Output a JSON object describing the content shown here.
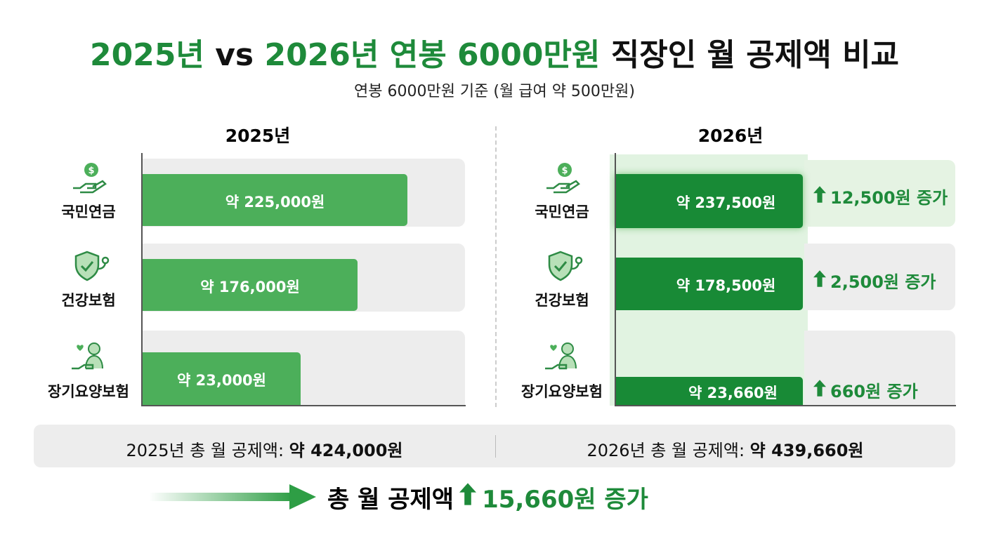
{
  "header": {
    "title": [
      {
        "text": "2025년",
        "color": "#1e8a3a"
      },
      {
        "text": "vs",
        "color": "#111111"
      },
      {
        "text": "2026년 연봉 6000만원",
        "color": "#1e8a3a"
      },
      {
        "text": "직장인 월 공제액 비교",
        "color": "#111111"
      }
    ],
    "subtitle": "연봉 6000만원 기준 (월 급여 약 500만원)"
  },
  "panels": [
    {
      "year": "2025년",
      "rows": [
        {
          "label": "국민연금",
          "amount": "약 225,000원"
        },
        {
          "label": "건강보험",
          "amount": "약 176,000원"
        },
        {
          "label": "장기요양보험",
          "amount": "약 23,000원"
        }
      ]
    },
    {
      "year": "2026년",
      "rows": [
        {
          "label": "국민연금",
          "amount": "약 237,500원",
          "change": "12,500원 증가"
        },
        {
          "label": "건강보험",
          "amount": "약 178,500원",
          "change": "2,500원 증가"
        },
        {
          "label": "장기요양보험",
          "amount": "약 23,660원",
          "change": "660원 증가"
        }
      ]
    }
  ],
  "totals": [
    {
      "label": "2025년 총 월 공제액:",
      "amount": "약 424,000원"
    },
    {
      "label": "2026년 총 월 공제액:",
      "amount": "약 439,660원"
    }
  ],
  "summary": {
    "label": "총 월 공제액",
    "change": "15,660원 증가"
  }
}
